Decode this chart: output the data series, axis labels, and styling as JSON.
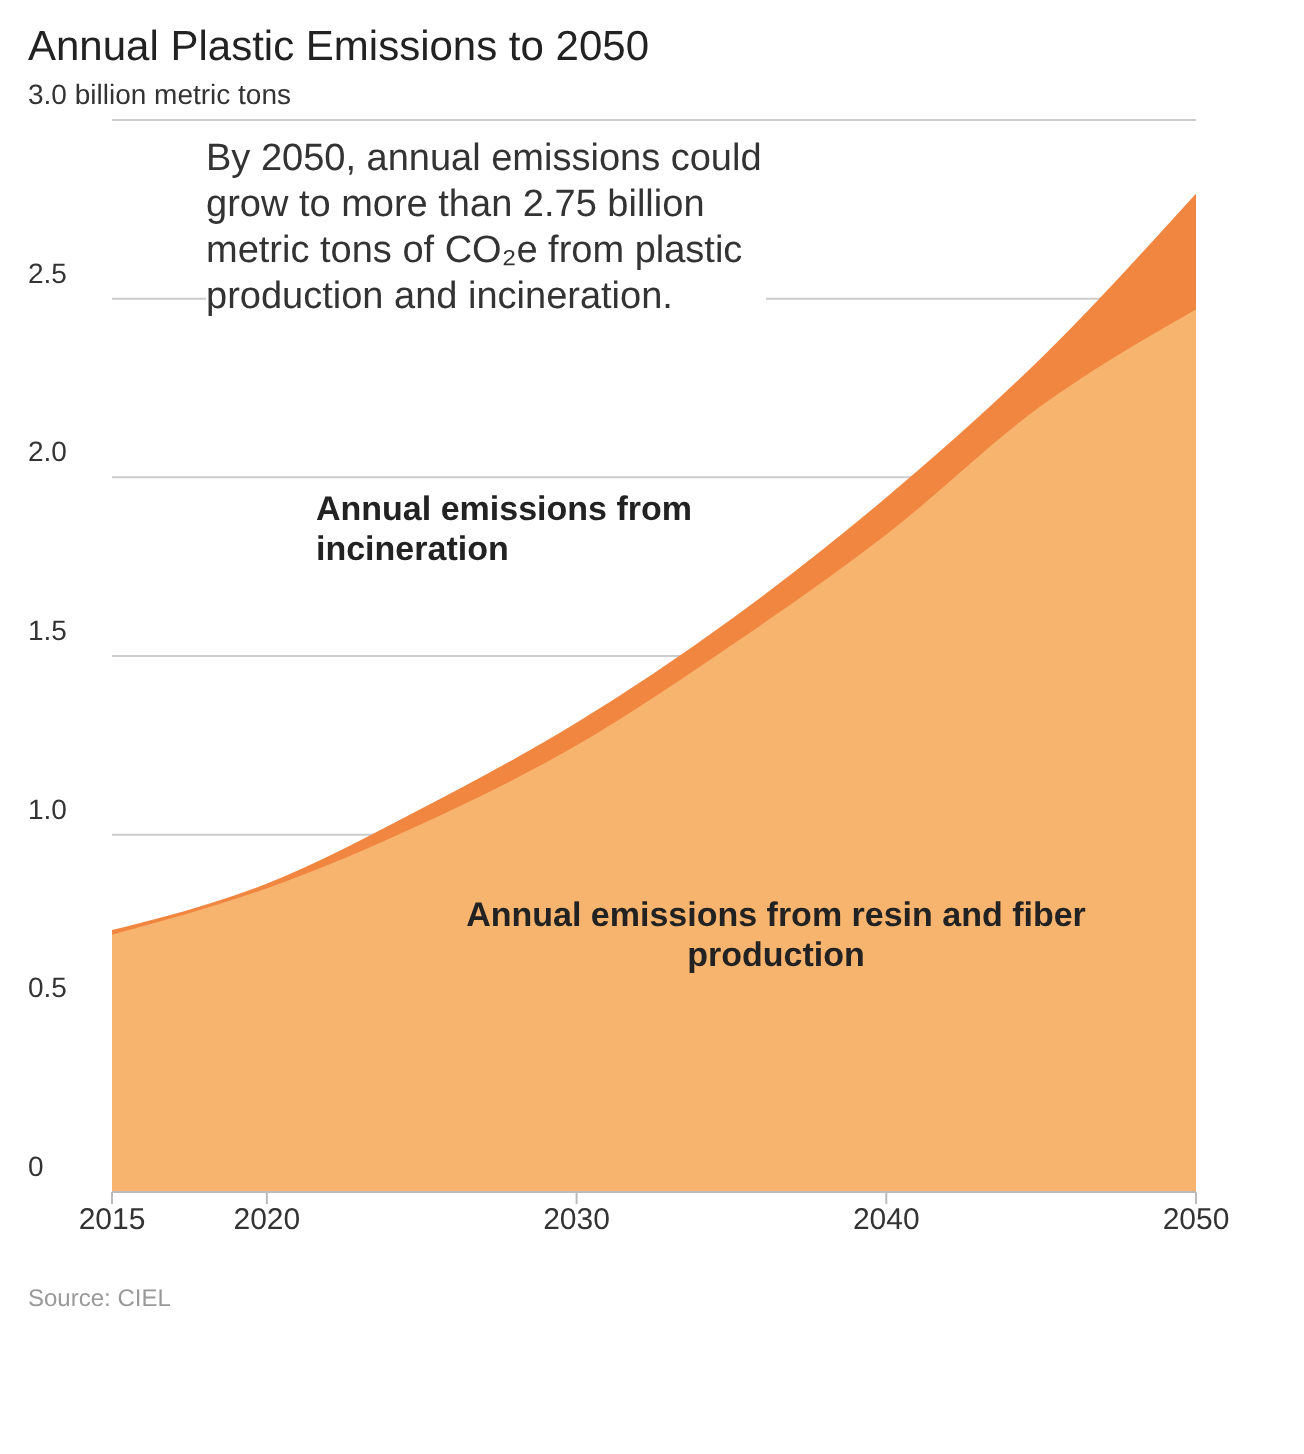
{
  "chart_data": {
    "type": "area",
    "title": "Annual Plastic Emissions to 2050",
    "stacked": true,
    "x": [
      2015,
      2020,
      2025,
      2030,
      2035,
      2040,
      2045,
      2050
    ],
    "series": [
      {
        "name": "Annual emissions from resin and fiber production",
        "color": "#f7b46f",
        "values": [
          0.72,
          0.85,
          1.03,
          1.25,
          1.53,
          1.84,
          2.2,
          2.47
        ]
      },
      {
        "name": "Annual emissions from incineration",
        "color": "#f08640",
        "values": [
          0.01,
          0.01,
          0.04,
          0.06,
          0.07,
          0.1,
          0.13,
          0.32
        ]
      }
    ],
    "xlim": [
      2015,
      2050
    ],
    "xticks": [
      2015,
      2020,
      2030,
      2040,
      2050
    ],
    "ylim": [
      0,
      3
    ],
    "yticks": [
      0,
      {
        "value": 0.5,
        "label": "0.5"
      },
      {
        "value": 1,
        "label": "1.0"
      },
      {
        "value": 1.5,
        "label": "1.5"
      },
      {
        "value": 2,
        "label": "2.0"
      },
      {
        "value": 2.5,
        "label": "2.5"
      },
      {
        "value": 3,
        "label": "3.0 billion metric tons"
      }
    ],
    "grid": "y",
    "annotations": [
      "By 2050, annual emissions could grow to more than 2.75 billion metric tons of CO₂e from plastic production and incineration.",
      "Source: CIEL"
    ]
  }
}
